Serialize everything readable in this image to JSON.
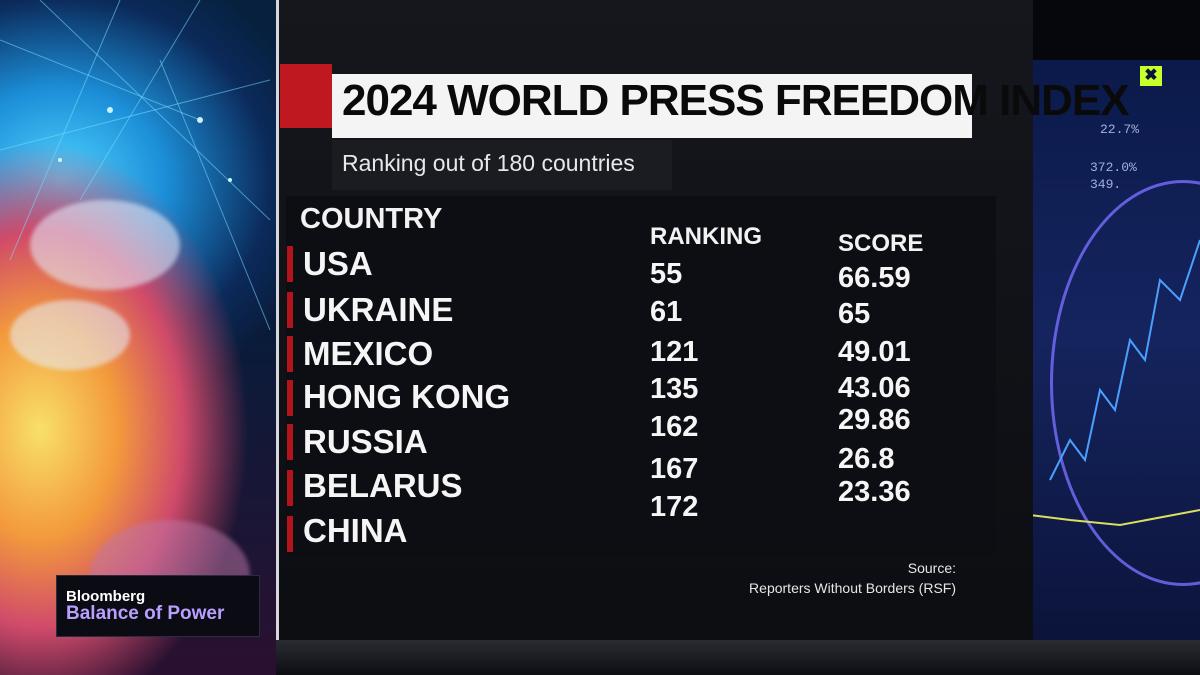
{
  "title": "2024 WORLD PRESS FREEDOM INDEX",
  "subtitle": "Ranking out of 180 countries",
  "headers": {
    "country": "COUNTRY",
    "ranking": "RANKING",
    "score": "SCORE"
  },
  "rows": [
    {
      "country": "USA",
      "ranking": "55",
      "score": "66.59"
    },
    {
      "country": "UKRAINE",
      "ranking": "61",
      "score": "65"
    },
    {
      "country": "MEXICO",
      "ranking": "121",
      "score": "49.01"
    },
    {
      "country": "HONG KONG",
      "ranking": "135",
      "score": "43.06"
    },
    {
      "country": "RUSSIA",
      "ranking": "162",
      "score": "29.86"
    },
    {
      "country": "BELARUS",
      "ranking": "167",
      "score": "26.8"
    },
    {
      "country": "CHINA",
      "ranking": "172",
      "score": "23.36"
    }
  ],
  "source": {
    "label": "Source:",
    "name": "Reporters Without Borders (RSF)"
  },
  "brand": {
    "network": "Bloomberg",
    "show": "Balance of Power"
  },
  "viz_numbers": [
    "22.7%",
    "372.0%",
    "349."
  ],
  "badge": "✖",
  "colors": {
    "accent_red": "#c01820",
    "show_purple": "#b9a0ff",
    "badge_green": "#c8ff2a"
  }
}
